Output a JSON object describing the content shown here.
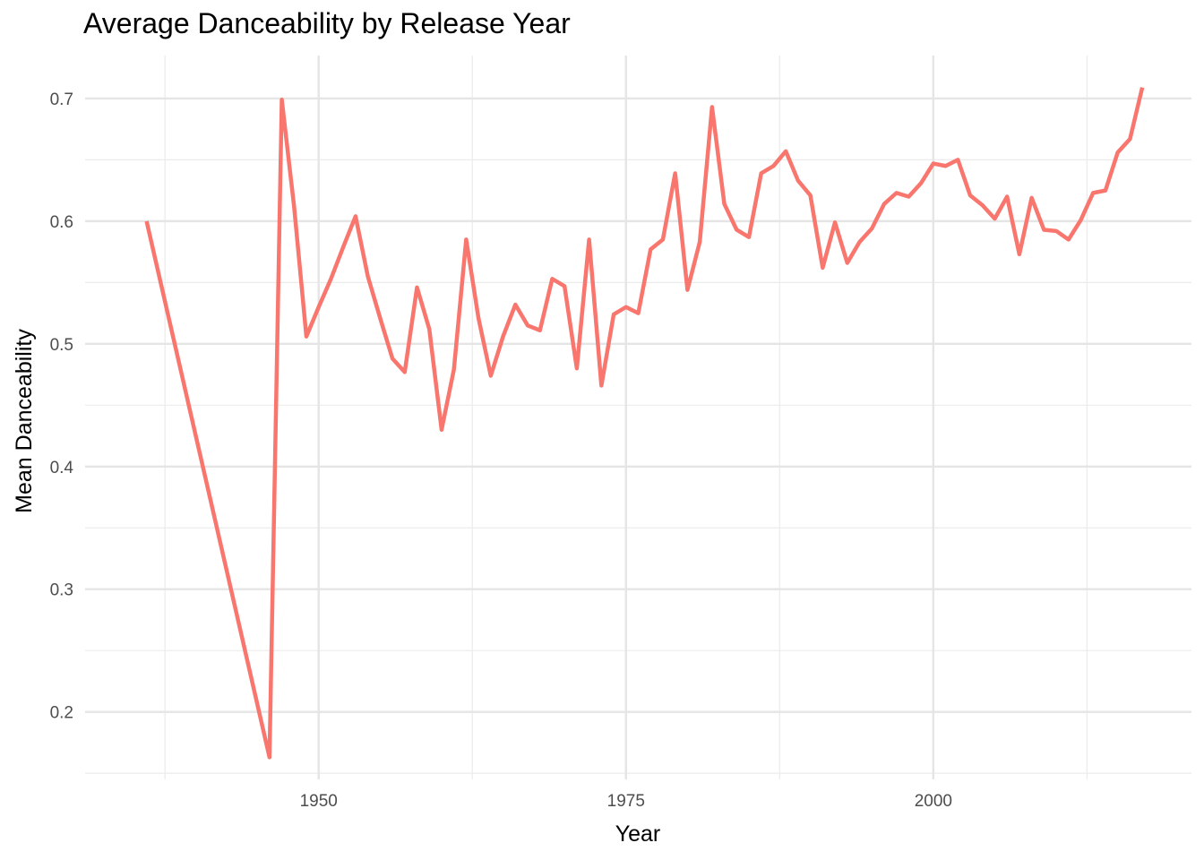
{
  "chart_data": {
    "type": "line",
    "title": "Average Danceability by Release Year",
    "xlabel": "Year",
    "ylabel": "Mean Danceability",
    "xlim": [
      1931,
      2021
    ],
    "ylim": [
      0.145,
      0.735
    ],
    "x_ticks": [
      1950,
      1975,
      2000
    ],
    "y_ticks": [
      0.2,
      0.3,
      0.4,
      0.5,
      0.6,
      0.7
    ],
    "grid": true,
    "legend": "none",
    "series": [
      {
        "color": "#F8766D",
        "x": [
          1936,
          1946,
          1947,
          1948,
          1949,
          1950,
          1951,
          1952,
          1953,
          1954,
          1955,
          1956,
          1957,
          1958,
          1959,
          1960,
          1961,
          1962,
          1963,
          1964,
          1965,
          1966,
          1967,
          1968,
          1969,
          1970,
          1971,
          1972,
          1973,
          1974,
          1975,
          1976,
          1977,
          1978,
          1979,
          1980,
          1981,
          1982,
          1983,
          1984,
          1985,
          1986,
          1987,
          1988,
          1989,
          1990,
          1991,
          1992,
          1993,
          1994,
          1995,
          1996,
          1997,
          1998,
          1999,
          2000,
          2001,
          2002,
          2003,
          2004,
          2005,
          2006,
          2007,
          2008,
          2009,
          2010,
          2011,
          2012,
          2013,
          2014,
          2015,
          2016,
          2017
        ],
        "y": [
          0.6,
          0.163,
          0.699,
          0.612,
          0.506,
          0.53,
          0.553,
          0.579,
          0.604,
          0.555,
          0.521,
          0.488,
          0.477,
          0.546,
          0.512,
          0.43,
          0.479,
          0.585,
          0.521,
          0.474,
          0.506,
          0.532,
          0.515,
          0.511,
          0.553,
          0.547,
          0.48,
          0.585,
          0.466,
          0.524,
          0.53,
          0.525,
          0.577,
          0.585,
          0.639,
          0.544,
          0.583,
          0.693,
          0.614,
          0.593,
          0.587,
          0.639,
          0.645,
          0.657,
          0.633,
          0.621,
          0.562,
          0.599,
          0.566,
          0.583,
          0.594,
          0.614,
          0.623,
          0.62,
          0.631,
          0.647,
          0.645,
          0.65,
          0.621,
          0.613,
          0.602,
          0.62,
          0.573,
          0.619,
          0.593,
          0.592,
          0.585,
          0.601,
          0.623,
          0.625,
          0.656,
          0.667,
          0.709
        ]
      }
    ]
  }
}
